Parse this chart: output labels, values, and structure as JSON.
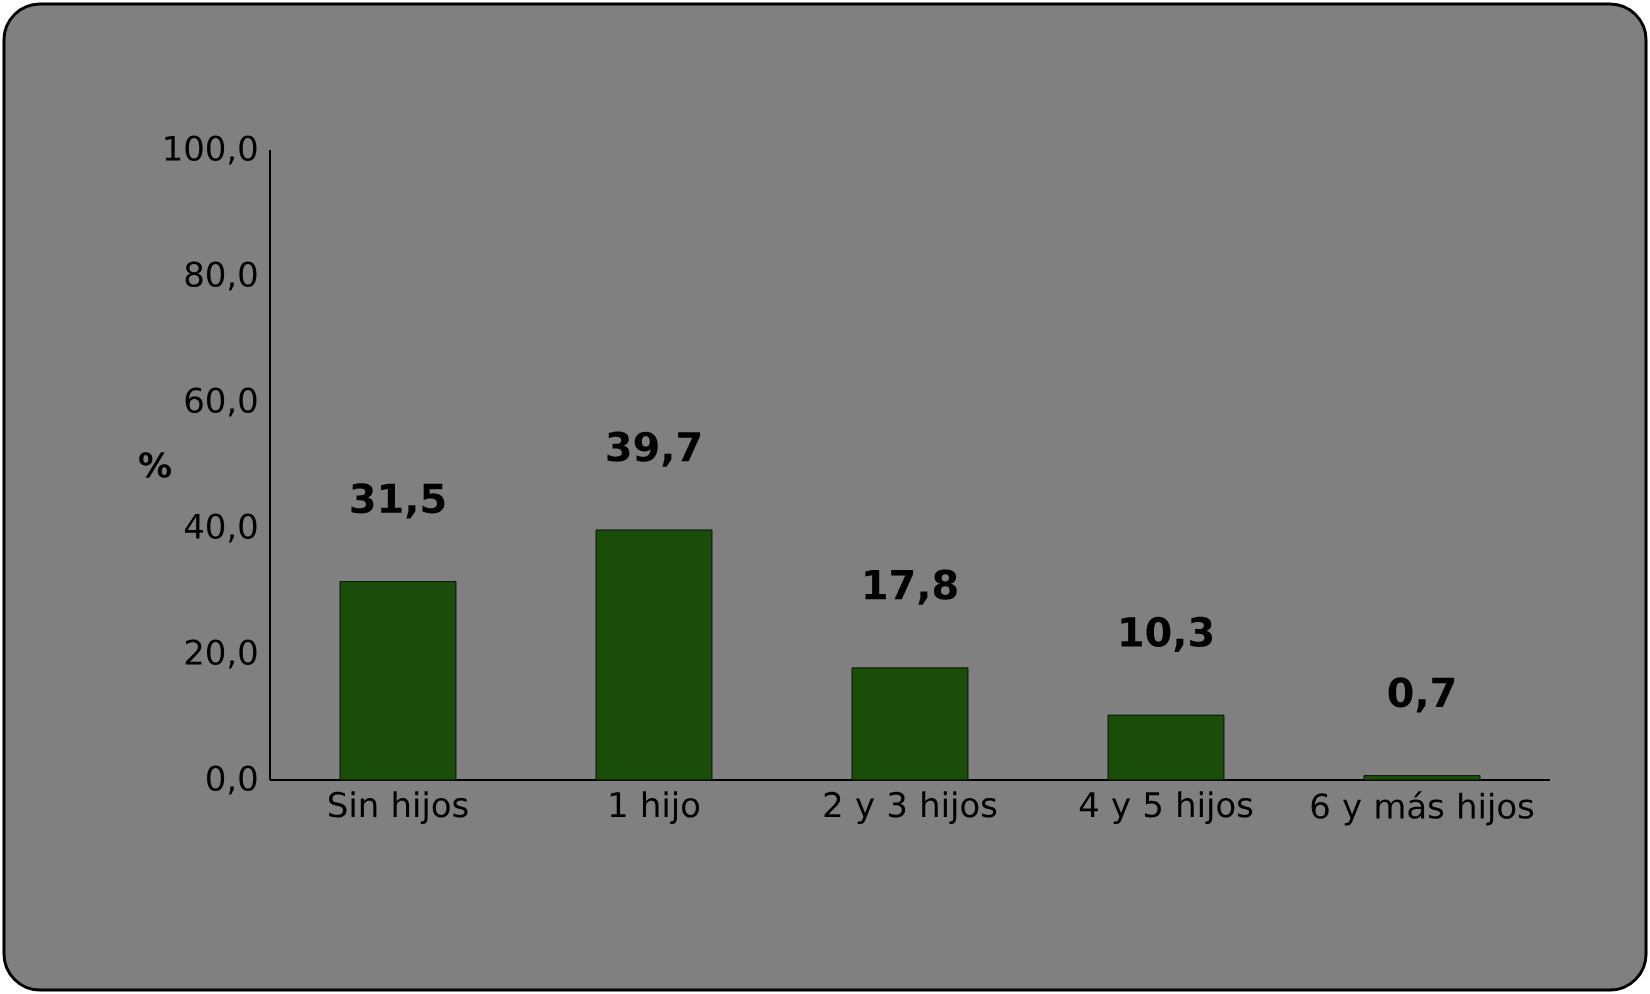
{
  "chart_data": {
    "type": "bar",
    "ylabel": "%",
    "categories": [
      "Sin hijos",
      "1 hijo",
      "2 y 3 hijos",
      "4 y 5 hijos",
      "6 y más hijos"
    ],
    "values": [
      31.5,
      39.7,
      17.8,
      10.3,
      0.7
    ],
    "value_labels": [
      "31,5",
      "39,7",
      "17,8",
      "10,3",
      "0,7"
    ],
    "color": "#1a4d0a",
    "ylim": [
      0,
      100
    ],
    "yticks": [
      {
        "value": 0,
        "label": "0,0"
      },
      {
        "value": 20,
        "label": "20,0"
      },
      {
        "value": 40,
        "label": "40,0"
      },
      {
        "value": 60,
        "label": "60,0"
      },
      {
        "value": 80,
        "label": "80,0"
      },
      {
        "value": 100,
        "label": "100,0"
      }
    ]
  }
}
